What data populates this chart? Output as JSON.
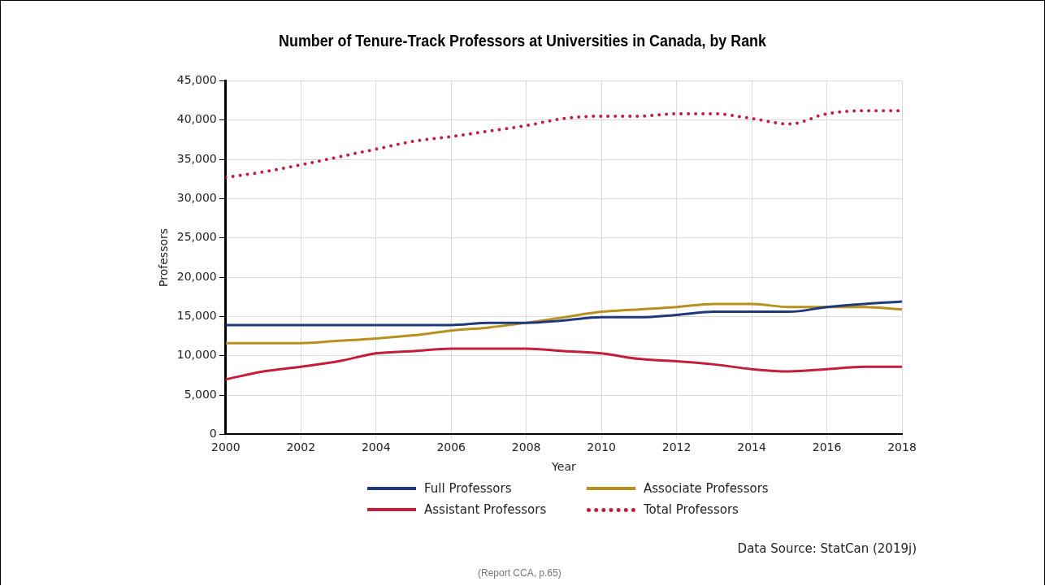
{
  "chart_data": {
    "type": "line",
    "title": "Number of Tenure-Track Professors at Universities in Canada, by Rank",
    "xlabel": "Year",
    "ylabel": "Professors",
    "x": [
      2000,
      2001,
      2002,
      2003,
      2004,
      2005,
      2006,
      2007,
      2008,
      2009,
      2010,
      2011,
      2012,
      2013,
      2014,
      2015,
      2016,
      2017,
      2018
    ],
    "xlim": [
      2000,
      2018
    ],
    "xticks": [
      2000,
      2002,
      2004,
      2006,
      2008,
      2010,
      2012,
      2014,
      2016,
      2018
    ],
    "ylim": [
      0,
      45000
    ],
    "yticks": [
      {
        "value": 0,
        "label": "0"
      },
      {
        "value": 5000,
        "label": "5,000"
      },
      {
        "value": 10000,
        "label": "10,000"
      },
      {
        "value": 15000,
        "label": "15,000"
      },
      {
        "value": 20000,
        "label": "20,000"
      },
      {
        "value": 25000,
        "label": "25,000"
      },
      {
        "value": 30000,
        "label": "30,000"
      },
      {
        "value": 35000,
        "label": "35,000"
      },
      {
        "value": 40000,
        "label": "40,000"
      },
      {
        "value": 45000,
        "label": "45,000"
      }
    ],
    "grid": true,
    "legend": "bottom",
    "marker": "none",
    "series": [
      {
        "name": "Full Professors",
        "color": "#1f3a7a",
        "values": [
          13900,
          13900,
          13900,
          13900,
          13900,
          13900,
          13900,
          14200,
          14200,
          14500,
          14900,
          14900,
          15200,
          15600,
          15600,
          15600,
          16200,
          16600,
          16900
        ]
      },
      {
        "name": "Associate Professors",
        "color": "#b8901e",
        "values": [
          11600,
          11600,
          11600,
          11900,
          12200,
          12600,
          13200,
          13600,
          14200,
          14900,
          15600,
          15900,
          16200,
          16600,
          16600,
          16200,
          16200,
          16200,
          15900
        ]
      },
      {
        "name": "Assistant Professors",
        "color": "#c41e3a",
        "values": [
          7000,
          8000,
          8600,
          9300,
          10300,
          10600,
          10900,
          10900,
          10900,
          10600,
          10300,
          9600,
          9300,
          8900,
          8300,
          8000,
          8300,
          8600,
          8600
        ]
      },
      {
        "name": "Total Professors",
        "color": "#c41e3a",
        "line_style": "dotted",
        "values": [
          32700,
          33400,
          34300,
          35300,
          36300,
          37300,
          37900,
          38600,
          39300,
          40200,
          40500,
          40500,
          40800,
          40800,
          40200,
          39500,
          40800,
          41200,
          41200
        ]
      }
    ],
    "annotations": [
      "Data Source: StatCan (2019j)",
      "(Report CCA, p.65)"
    ]
  }
}
